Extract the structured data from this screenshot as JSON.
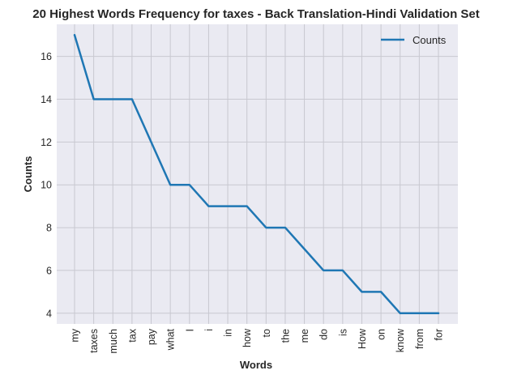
{
  "chart_data": {
    "type": "line",
    "title": "20 Highest Words Frequency for taxes - Back Translation-Hindi Validation Set",
    "xlabel": "Words",
    "ylabel": "Counts",
    "categories": [
      "my",
      "taxes",
      "much",
      "tax",
      "pay",
      "what",
      "I",
      "i",
      "in",
      "how",
      "to",
      "the",
      "me",
      "do",
      "is",
      "How",
      "on",
      "know",
      "from",
      "for"
    ],
    "series": [
      {
        "name": "Counts",
        "values": [
          17,
          14,
          14,
          14,
          12,
          10,
          10,
          9,
          9,
          9,
          8,
          8,
          7,
          6,
          6,
          5,
          5,
          4,
          4,
          4
        ],
        "color": "#1f77b4"
      }
    ],
    "ylim": [
      3.5,
      17.5
    ],
    "yticks": [
      4,
      6,
      8,
      10,
      12,
      14,
      16
    ],
    "grid": true,
    "legend_position": "top-right",
    "background": "#eaeaf2",
    "grid_color": "#c8c8d0"
  }
}
